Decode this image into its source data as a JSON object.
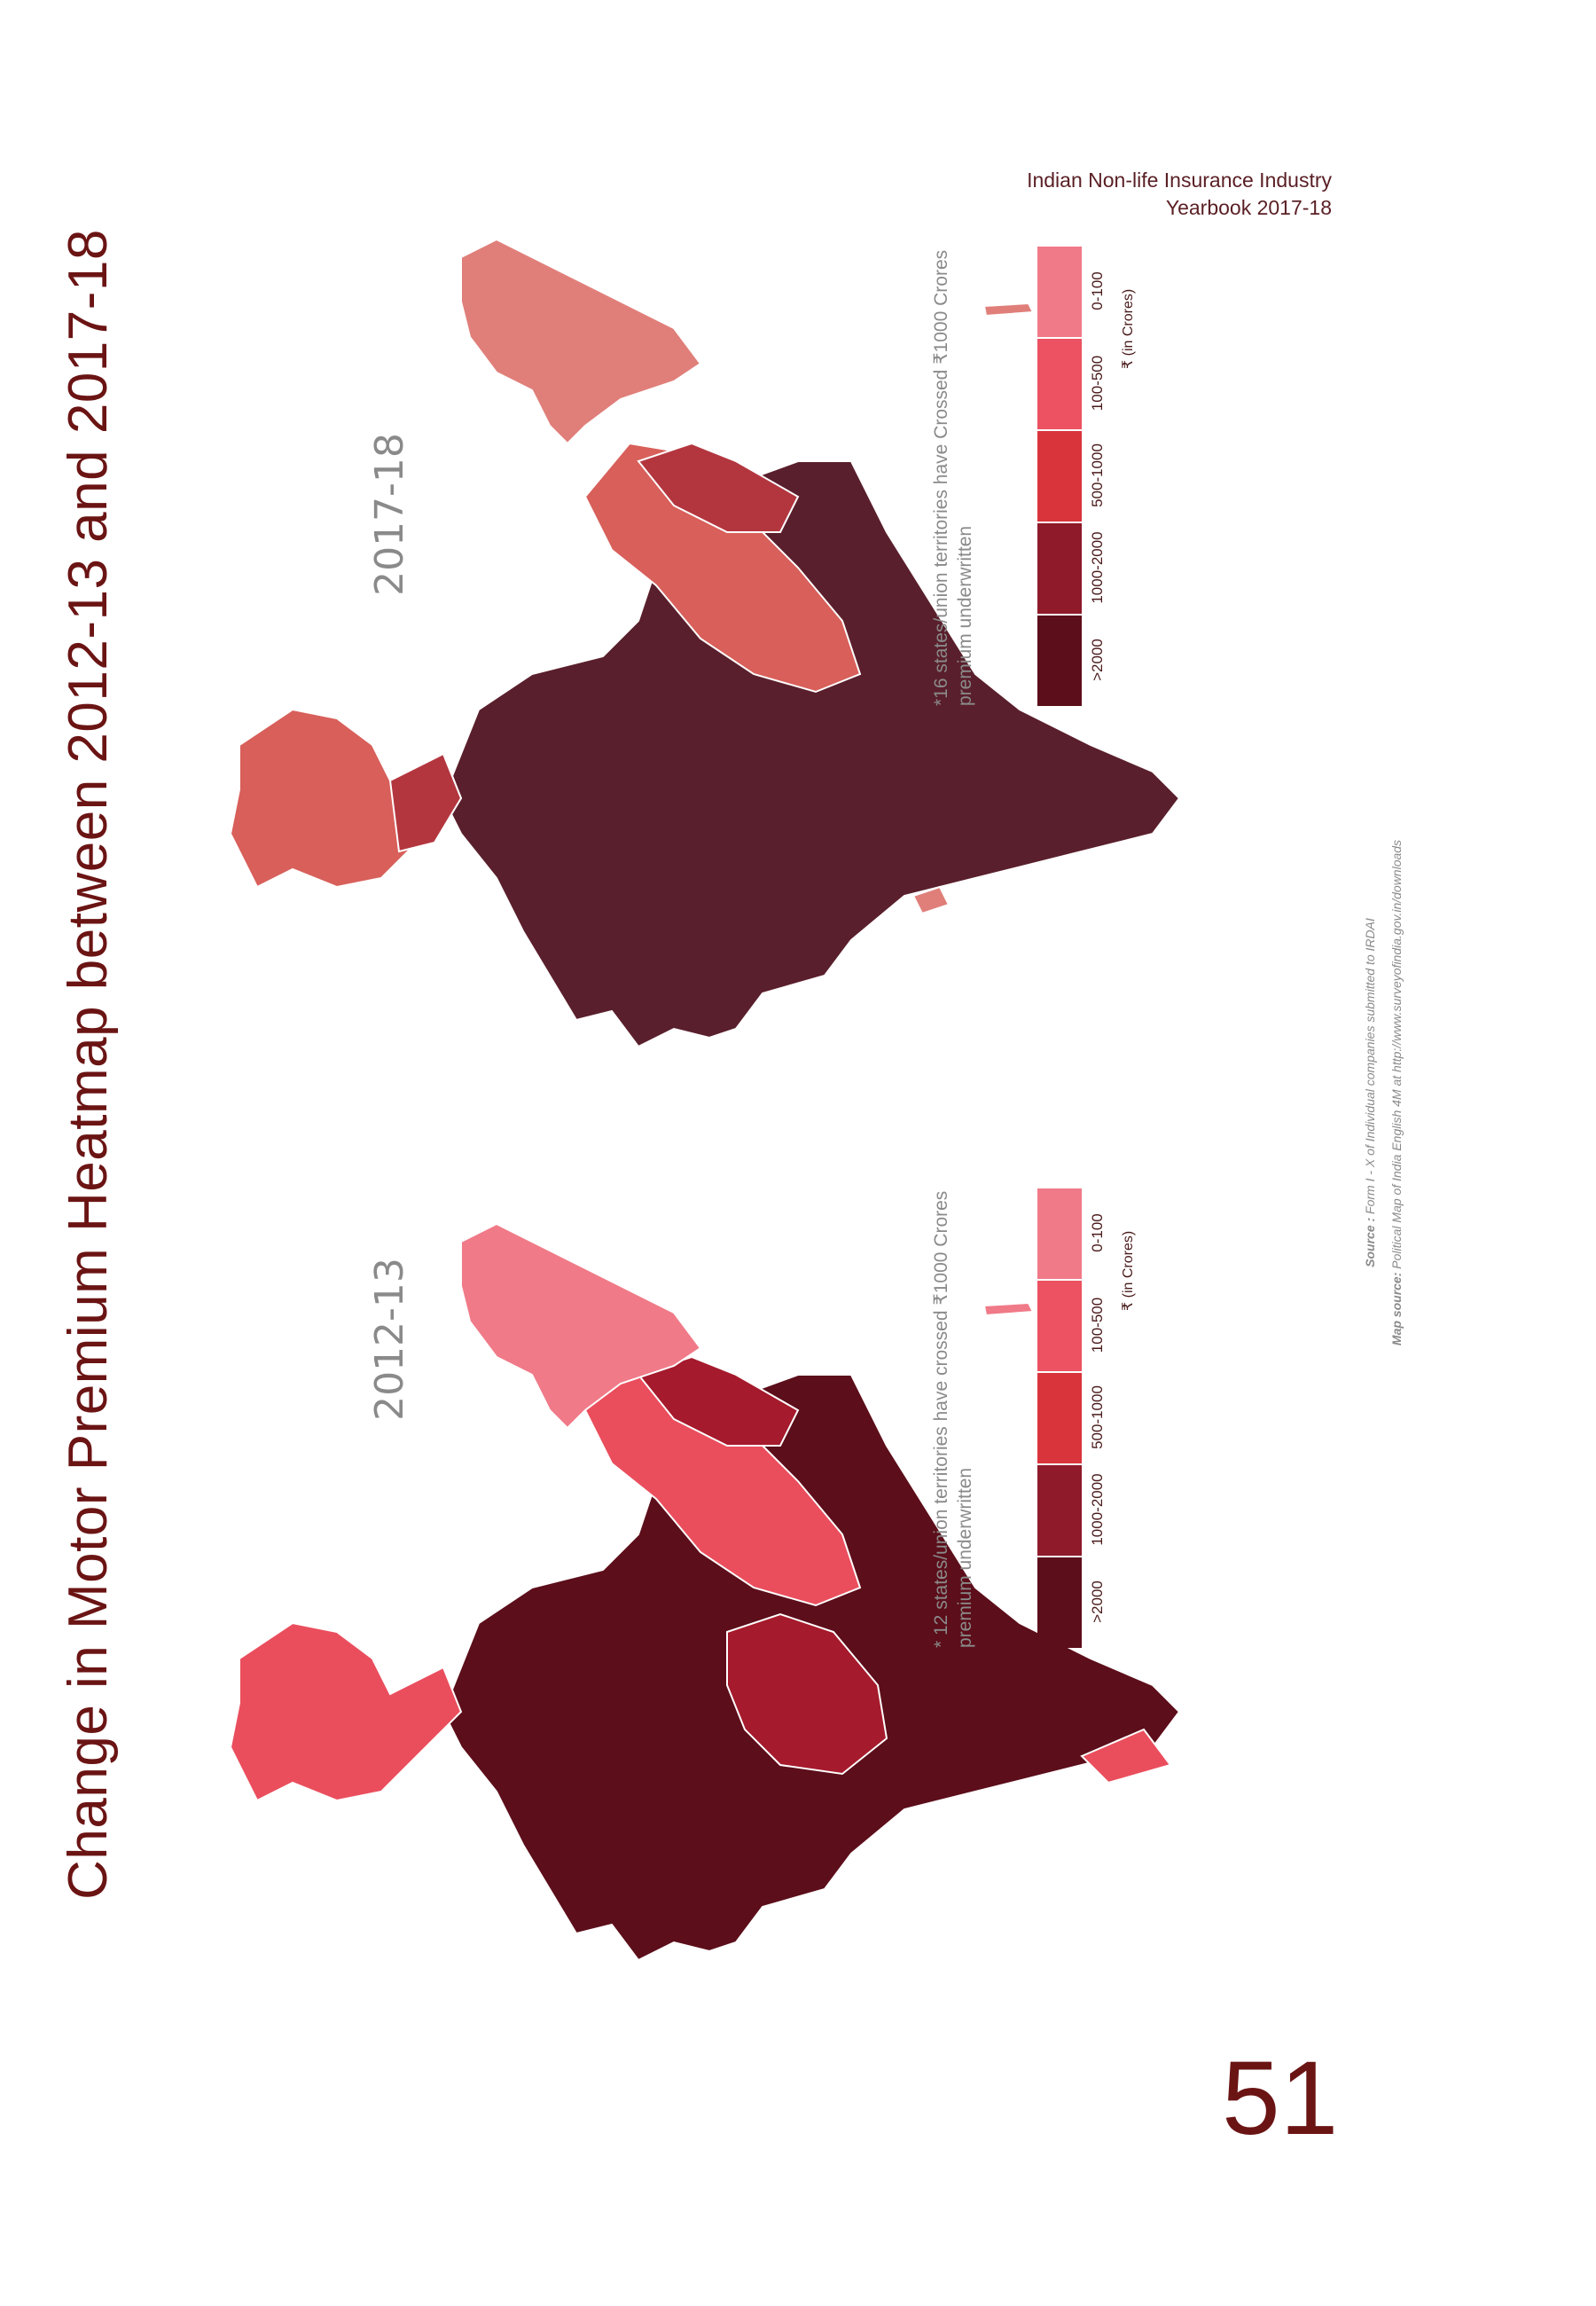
{
  "header": {
    "line1": "Indian Non-life Insurance Industry",
    "line2": "Yearbook 2017-18"
  },
  "title": "Change in Motor Premium Heatmap between 2012-13 and 2017-18",
  "page_number": "51",
  "legend": {
    "categories": [
      ">2000",
      "1000-2000",
      "500-1000",
      "100-500",
      "0-100"
    ],
    "colors": [
      "#5c0e1a",
      "#8e1a2a",
      "#d9343c",
      "#ec5261",
      "#f07a88"
    ],
    "unit": "₹ (in Crores)"
  },
  "maps": [
    {
      "year": "2017-18",
      "note": "*16 states/union territories have Crossed ₹1000 Crores premium underwritten",
      "fill_main": "#5a1f2c",
      "fill_mid": "#b3363f",
      "fill_light": "#d85f5a",
      "fill_pale": "#e07f7a"
    },
    {
      "year": "2012-13",
      "note": "* 12 states/union territories have crossed ₹1000 Crores premium underwritten",
      "fill_main": "#5c0e1a",
      "fill_mid": "#a51a2c",
      "fill_light": "#ea4e5d",
      "fill_pale": "#f07a88"
    }
  ],
  "source": {
    "source_label": "Source :",
    "source_text": "Form I - X of Individual companies submitted to IRDAI",
    "map_source_label": "Map source:",
    "map_source_text": "Political Map of India English 4M at http://www.surveyofindia.gov.in/downloads"
  }
}
